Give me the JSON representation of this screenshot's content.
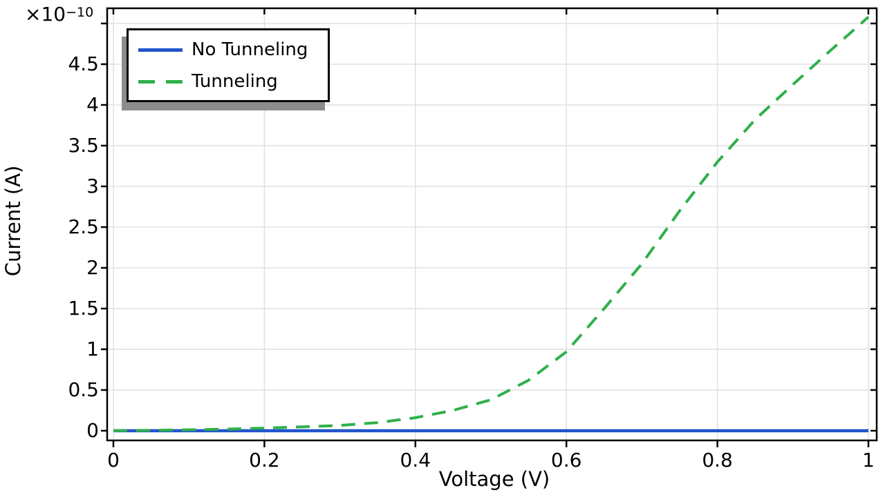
{
  "chart_data": {
    "type": "line",
    "title": "",
    "xlabel": "Voltage (V)",
    "ylabel": "Current (A)",
    "y_multiplier_base": "×10",
    "y_multiplier_exponent": "−10",
    "xlim": [
      0,
      1
    ],
    "ylim": [
      0,
      5.19
    ],
    "grid": true,
    "x_ticks": [
      0,
      0.2,
      0.4,
      0.6,
      0.8,
      1
    ],
    "x_tick_labels": [
      "0",
      "0.2",
      "0.4",
      "0.6",
      "0.8",
      "1"
    ],
    "y_ticks": [
      0,
      0.5,
      1,
      1.5,
      2,
      2.5,
      3,
      3.5,
      4,
      4.5,
      5
    ],
    "y_tick_labels": [
      "0",
      "0.5",
      "1",
      "1.5",
      "2",
      "2.5",
      "3",
      "3.5",
      "4",
      "4.5",
      ""
    ],
    "legend": {
      "position": "top-left",
      "entries": [
        "No Tunneling",
        "Tunneling"
      ]
    },
    "series": [
      {
        "name": "No Tunneling",
        "color": "#2153CC",
        "line_style": "solid",
        "x": [
          0,
          1
        ],
        "y": [
          0,
          0
        ]
      },
      {
        "name": "Tunneling",
        "color": "#2FB04A",
        "line_style": "dashed",
        "x": [
          0,
          0.05,
          0.1,
          0.15,
          0.2,
          0.25,
          0.3,
          0.35,
          0.4,
          0.45,
          0.5,
          0.55,
          0.6,
          0.65,
          0.7,
          0.75,
          0.8,
          0.85,
          0.9,
          0.95,
          1.0
        ],
        "y": [
          0,
          0.005,
          0.012,
          0.02,
          0.032,
          0.048,
          0.065,
          0.1,
          0.16,
          0.25,
          0.38,
          0.62,
          0.97,
          1.5,
          2.05,
          2.7,
          3.3,
          3.82,
          4.25,
          4.67,
          5.08
        ]
      }
    ]
  },
  "colors": {
    "background": "#FFFFFF",
    "grid": "#E0E0E0",
    "axis": "#000000",
    "text": "#000000",
    "legend_shadow": "#8C8C8C"
  }
}
